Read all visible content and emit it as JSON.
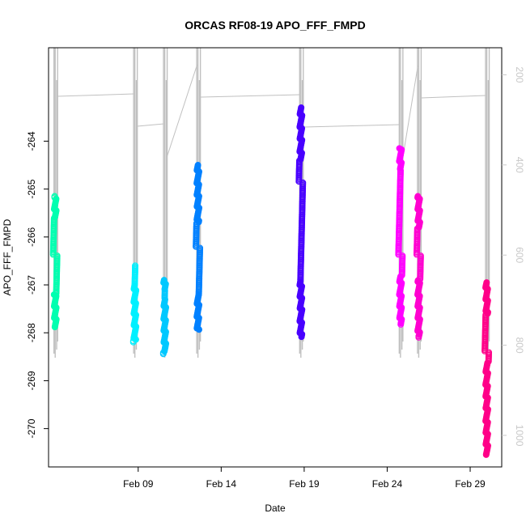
{
  "chart_data": {
    "type": "scatter",
    "title": "ORCAS RF08-19 APO_FFF_FMPD",
    "xlabel": "Date",
    "ylabel": "APO_FFF_FMPD",
    "x_ticks": [
      "Feb 09",
      "Feb 14",
      "Feb 19",
      "Feb 24",
      "Feb 29"
    ],
    "x_tick_days": [
      9,
      14,
      19,
      24,
      29
    ],
    "xlim": [
      3.6,
      30.9
    ],
    "ylim": [
      -270.8,
      -262.05
    ],
    "y_ticks": [
      -270,
      -269,
      -268,
      -267,
      -266,
      -265,
      -264
    ],
    "y_right_ticks": [
      200,
      400,
      600,
      800,
      1000
    ],
    "y_right_lim": [
      1070,
      140
    ],
    "grid": false,
    "background_line_color": "#c0c0c0",
    "flights": [
      {
        "day": 4.0,
        "min": -267.9,
        "max": -265.15,
        "color": "#00ffb0",
        "dense": [
          [
            -267.9,
            -267.2
          ],
          [
            -265.6,
            -265.2
          ]
        ]
      },
      {
        "day": 8.8,
        "min": -268.2,
        "max": -266.6,
        "color": "#00f0ff",
        "dense": [
          [
            -268.15,
            -267.0
          ]
        ]
      },
      {
        "day": 10.6,
        "min": -268.45,
        "max": -266.9,
        "color": "#00c8ff",
        "dense": [
          [
            -268.4,
            -267.3
          ],
          [
            -267.1,
            -266.9
          ]
        ]
      },
      {
        "day": 12.6,
        "min": -267.95,
        "max": -264.5,
        "color": "#0080ff",
        "dense": [
          [
            -267.95,
            -267.2
          ],
          [
            -265.7,
            -264.5
          ]
        ]
      },
      {
        "day": 18.8,
        "min": -268.1,
        "max": -263.3,
        "color": "#4800ff",
        "dense": [
          [
            -268.1,
            -266.9
          ],
          [
            -264.4,
            -263.3
          ]
        ]
      },
      {
        "day": 24.8,
        "min": -267.85,
        "max": -264.15,
        "color": "#ff00ff",
        "dense": [
          [
            -267.8,
            -266.8
          ],
          [
            -264.6,
            -264.15
          ]
        ]
      },
      {
        "day": 25.9,
        "min": -268.1,
        "max": -265.15,
        "color": "#ff00d0",
        "dense": [
          [
            -268.05,
            -266.9
          ],
          [
            -265.8,
            -265.15
          ]
        ]
      },
      {
        "day": 30.0,
        "min": -270.55,
        "max": -266.95,
        "color": "#ff0088",
        "dense": [
          [
            -270.55,
            -268.6
          ],
          [
            -267.6,
            -266.95
          ]
        ]
      }
    ]
  }
}
